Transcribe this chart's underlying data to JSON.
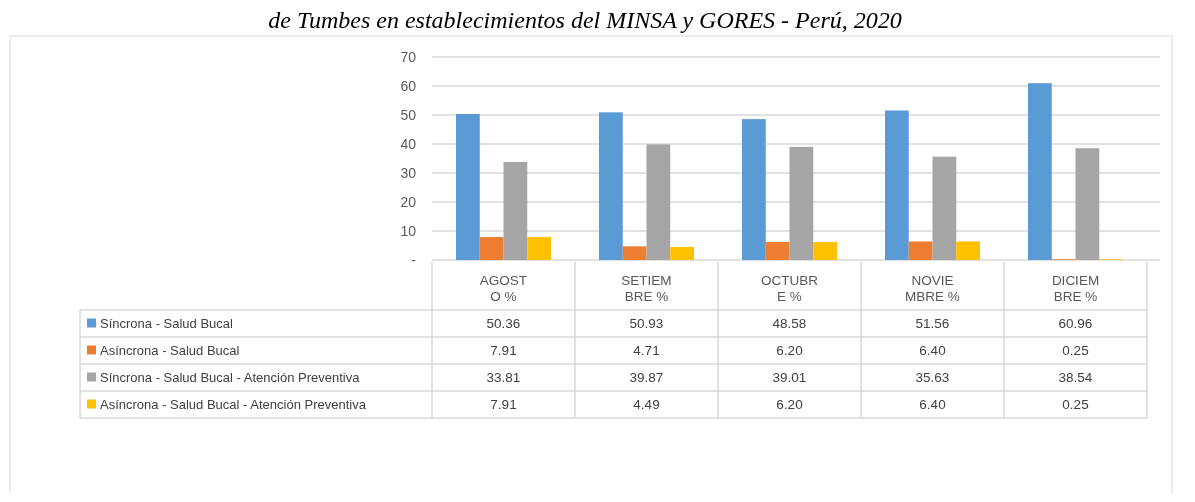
{
  "chart_data": {
    "type": "bar",
    "title": "de Tumbes en establecimientos del MINSA y GORES - Perú, 2020",
    "categories": [
      "AGOST\nO %",
      "SETIEM\nBRE %",
      "OCTUBR\nE %",
      "NOVIE\nMBRE %",
      "DICIEM\nBRE %"
    ],
    "series": [
      {
        "name": "Síncrona - Salud Bucal",
        "color": "#5b9bd5",
        "values": [
          50.36,
          50.93,
          48.58,
          51.56,
          60.96
        ],
        "value_labels": [
          "50.36",
          "50.93",
          "48.58",
          "51.56",
          "60.96"
        ]
      },
      {
        "name": "Asíncrona - Salud Bucal",
        "color": "#ed7d31",
        "values": [
          7.91,
          4.71,
          6.2,
          6.4,
          0.25
        ],
        "value_labels": [
          "7.91",
          "4.71",
          "6.20",
          "6.40",
          "0.25"
        ]
      },
      {
        "name": "Síncrona - Salud Bucal - Atención Preventiva",
        "color": "#a5a5a5",
        "values": [
          33.81,
          39.87,
          39.01,
          35.63,
          38.54
        ],
        "value_labels": [
          "33.81",
          "39.87",
          "39.01",
          "35.63",
          "38.54"
        ]
      },
      {
        "name": "Asíncrona - Salud Bucal - Atención Preventiva",
        "color": "#ffc000",
        "values": [
          7.91,
          4.49,
          6.2,
          6.4,
          0.25
        ],
        "value_labels": [
          "7.91",
          "4.49",
          "6.20",
          "6.40",
          "0.25"
        ]
      }
    ],
    "ylim": [
      0,
      70
    ],
    "yticks": [
      {
        "value": 0,
        "label": "-"
      },
      10,
      20,
      30,
      40,
      50,
      60,
      70
    ],
    "grid": "y",
    "legend": "bottom"
  }
}
